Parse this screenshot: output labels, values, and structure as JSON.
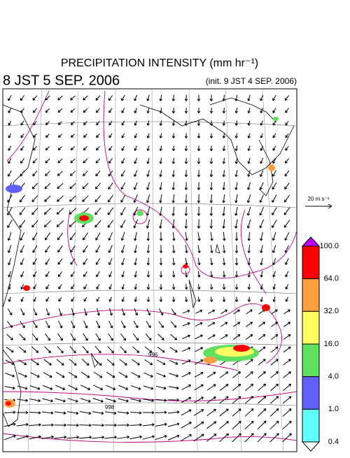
{
  "header": {
    "title": "PRECIPITATION INTENSITY (mm hr⁻¹)",
    "valid_time": "8 JST 5 SEP. 2006",
    "init_time": "(init. 9 JST 4 SEP. 2006)"
  },
  "reference_vector": {
    "label": "20 m s⁻¹"
  },
  "isobar_labels": [
    "996",
    "998"
  ],
  "legend": {
    "levels": [
      {
        "value": 100,
        "label": "100.0"
      },
      {
        "value": 64,
        "label": "64.0"
      },
      {
        "value": 32,
        "label": "32.0"
      },
      {
        "value": 16,
        "label": "16.0"
      },
      {
        "value": 4,
        "label": "4.0"
      },
      {
        "value": 1,
        "label": "1.0"
      },
      {
        "value": 0.4,
        "label": "0.4"
      }
    ],
    "colors": [
      "#ff0000",
      "#ffa040",
      "#ffff60",
      "#60e060",
      "#6060ff",
      "#60ffff"
    ],
    "over_color": "#c000ff",
    "under_color": "#ffffff"
  }
}
